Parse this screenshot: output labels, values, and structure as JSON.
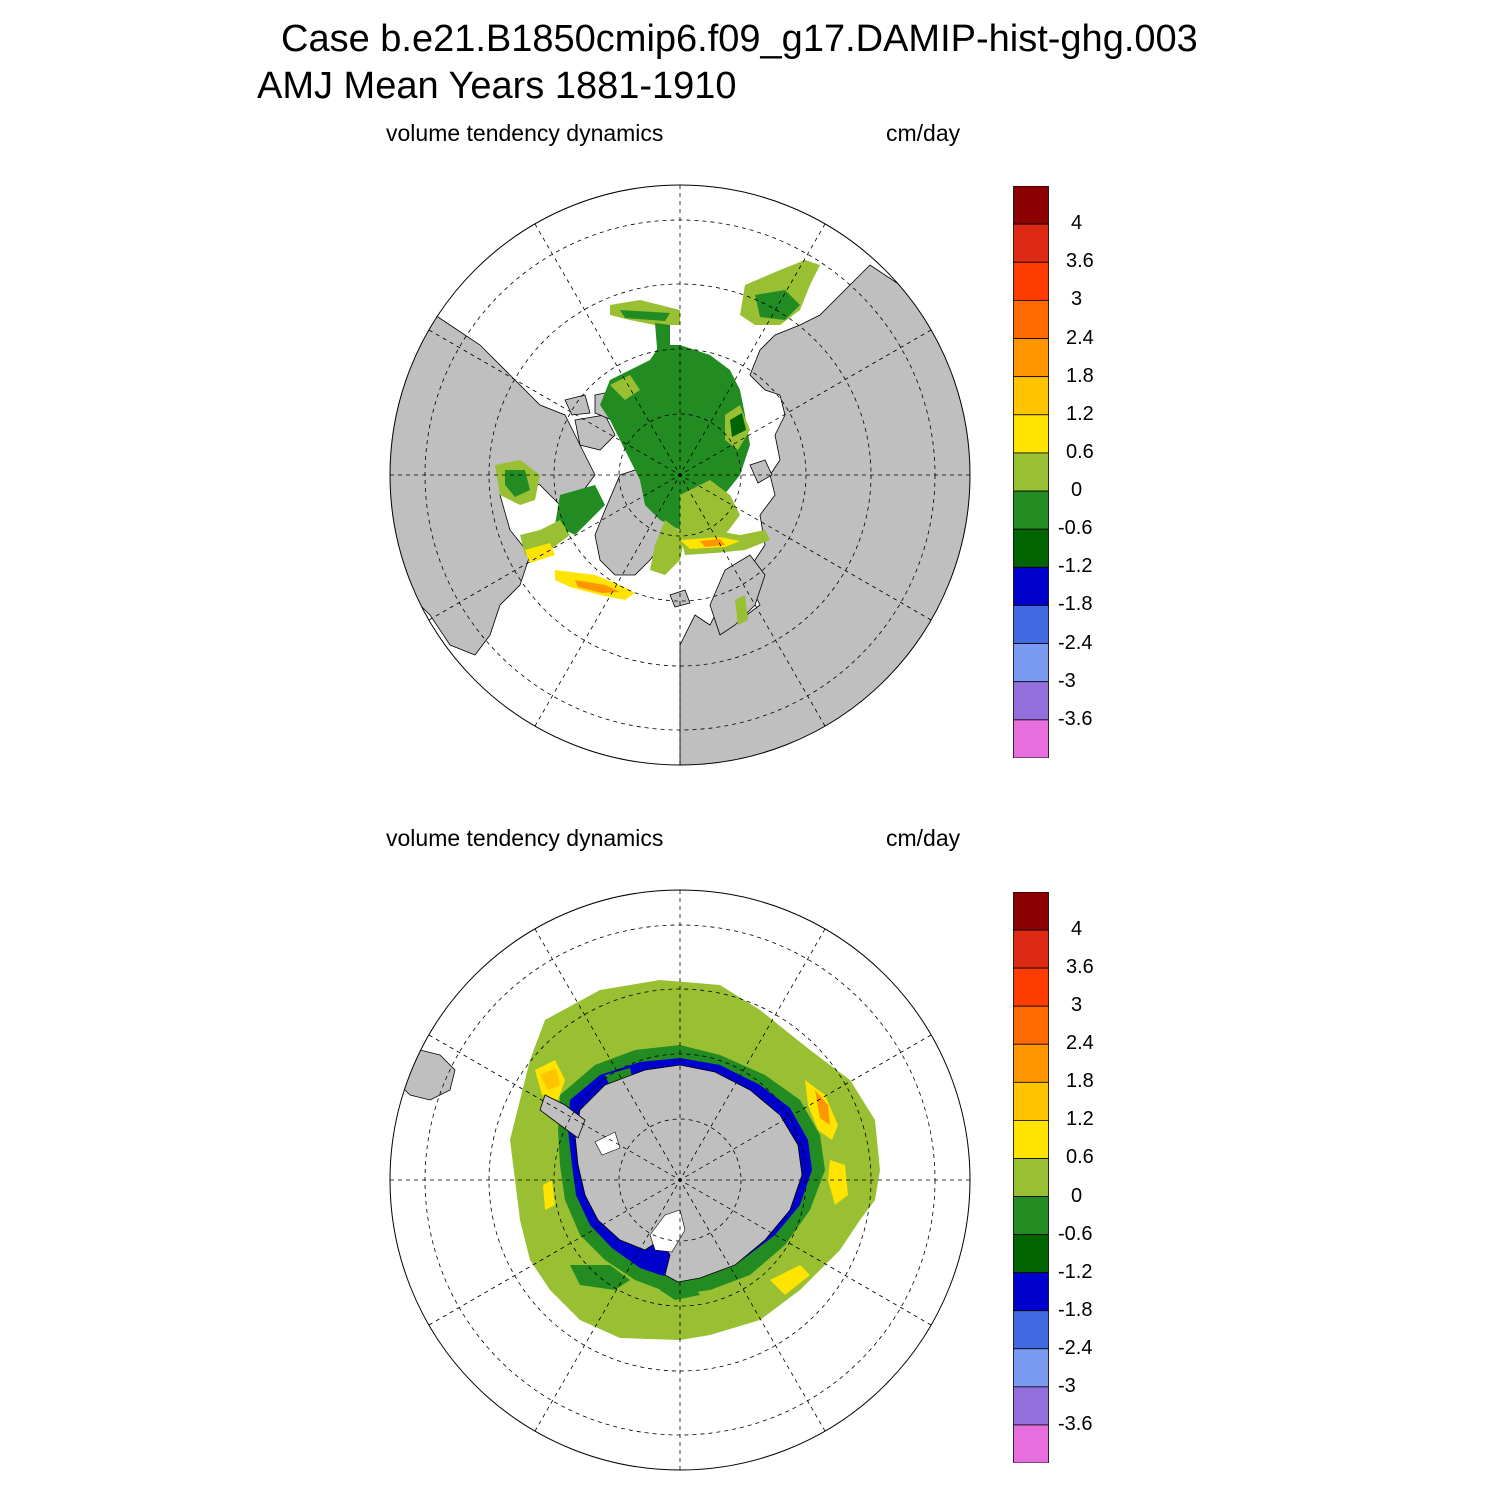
{
  "header": {
    "line1": "Case b.e21.B1850cmip6.f09_g17.DAMIP-hist-ghg.003",
    "line2": "AMJ Mean   Years 1881-1910"
  },
  "panels": [
    {
      "id": "north",
      "variable": "volume tendency dynamics",
      "units": "cm/day"
    },
    {
      "id": "south",
      "variable": "volume tendency dynamics",
      "units": "cm/day"
    }
  ],
  "colorbar": {
    "labels": [
      "4",
      "3.6",
      "3",
      "2.4",
      "1.8",
      "1.2",
      "0.6",
      "0",
      "-0.6",
      "-1.2",
      "-1.8",
      "-2.4",
      "-3",
      "-3.6"
    ],
    "colors": [
      "#8b0000",
      "#dd2a14",
      "#ff3c00",
      "#ff6a00",
      "#ff9600",
      "#ffc300",
      "#ffe400",
      "#99bf33",
      "#228b22",
      "#006400",
      "#0000cd",
      "#4169e1",
      "#7a9bf2",
      "#9370db",
      "#e76fdd"
    ]
  },
  "palette": {
    "land": "#bfbfbf",
    "ocean": "#ffffff",
    "ice_light_green": "#99bf33",
    "ice_green": "#228b22",
    "ice_dark_green": "#006400",
    "ice_yellow": "#ffe400",
    "ice_orange": "#ffc300",
    "ice_blue": "#0000cd"
  }
}
